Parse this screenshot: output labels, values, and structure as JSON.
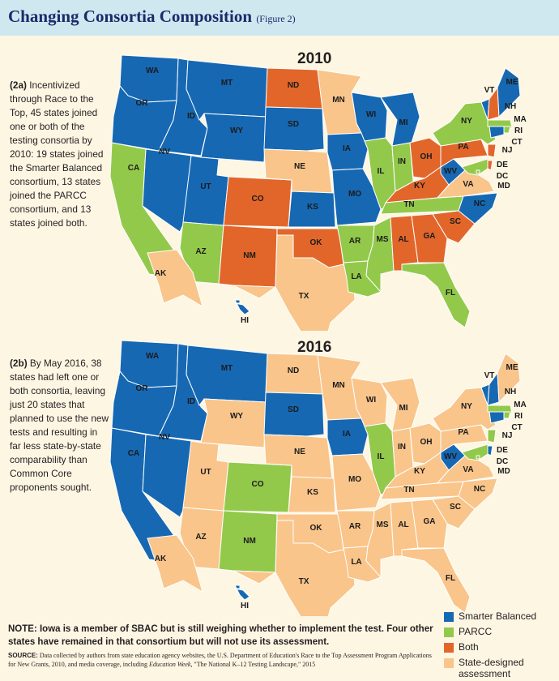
{
  "header": {
    "title": "Changing Consortia Composition",
    "figure_label": "(Figure 2)"
  },
  "colors": {
    "sbac": "#1668b3",
    "parcc": "#93c94b",
    "both": "#e2662a",
    "state": "#f9c58b",
    "border": "#ffffff"
  },
  "legend": [
    {
      "key": "sbac",
      "label": "Smarter Balanced"
    },
    {
      "key": "parcc",
      "label": "PARCC"
    },
    {
      "key": "both",
      "label": "Both"
    },
    {
      "key": "state",
      "label": "State-designed assessment"
    }
  ],
  "map2010": {
    "title": "2010",
    "desc_lead": "(2a)",
    "desc_text": "Incentivized through Race to the Top, 45 states joined one or both of the testing consortia by 2010: 19 states joined the Smarter Balanced consortium, 13 states joined the PARCC consortium, and 13 states joined both.",
    "states": {
      "WA": "sbac",
      "OR": "sbac",
      "CA": "parcc",
      "NV": "sbac",
      "ID": "sbac",
      "MT": "sbac",
      "WY": "sbac",
      "UT": "sbac",
      "AZ": "parcc",
      "CO": "both",
      "NM": "both",
      "ND": "both",
      "SD": "sbac",
      "NE": "state",
      "KS": "sbac",
      "OK": "both",
      "TX": "state",
      "MN": "state",
      "IA": "sbac",
      "MO": "sbac",
      "AR": "parcc",
      "LA": "parcc",
      "WI": "sbac",
      "IL": "parcc",
      "MI": "sbac",
      "IN": "parcc",
      "OH": "both",
      "KY": "both",
      "TN": "parcc",
      "MS": "parcc",
      "AL": "both",
      "GA": "both",
      "FL": "parcc",
      "SC": "both",
      "NC": "sbac",
      "VA": "state",
      "WV": "sbac",
      "PA": "both",
      "NY": "parcc",
      "VT": "sbac",
      "NH": "both",
      "ME": "sbac",
      "MA": "parcc",
      "RI": "parcc",
      "CT": "sbac",
      "NJ": "both",
      "DE": "both",
      "MD": "parcc",
      "DC": "parcc",
      "AK": "state",
      "HI": "sbac"
    }
  },
  "map2016": {
    "title": "2016",
    "desc_lead": "(2b)",
    "desc_text": "By May 2016, 38 states had left one or both consortia, leaving just 20 states that planned to use the new tests and resulting in far less state-by-state comparability than Common Core proponents sought.",
    "states": {
      "WA": "sbac",
      "OR": "sbac",
      "CA": "sbac",
      "NV": "sbac",
      "ID": "sbac",
      "MT": "sbac",
      "WY": "state",
      "UT": "state",
      "AZ": "state",
      "CO": "parcc",
      "NM": "parcc",
      "ND": "state",
      "SD": "sbac",
      "NE": "state",
      "KS": "state",
      "OK": "state",
      "TX": "state",
      "MN": "state",
      "IA": "sbac",
      "MO": "state",
      "AR": "state",
      "LA": "state",
      "WI": "state",
      "IL": "parcc",
      "MI": "state",
      "IN": "state",
      "OH": "state",
      "KY": "state",
      "TN": "state",
      "MS": "state",
      "AL": "state",
      "GA": "state",
      "FL": "state",
      "SC": "state",
      "NC": "state",
      "VA": "state",
      "WV": "sbac",
      "PA": "state",
      "NY": "state",
      "VT": "sbac",
      "NH": "sbac",
      "ME": "state",
      "MA": "parcc",
      "RI": "parcc",
      "CT": "sbac",
      "NJ": "parcc",
      "DE": "sbac",
      "MD": "parcc",
      "DC": "parcc",
      "AK": "state",
      "HI": "sbac"
    }
  },
  "note": "NOTE: Iowa is a member of SBAC but is still weighing whether to implement the test. Four other states have remained in that consortium but will not use its assessment.",
  "source": {
    "label": "SOURCE:",
    "text_1": "Data collected by authors from state education agency websites, the U.S. Department of Education's Race to the Top Assessment Program Applications for New Grants, 2010, and media coverage, including",
    "italic": "Education Week",
    "text_2": ", \"The National K–12 Testing Landscape,\" 2015"
  }
}
